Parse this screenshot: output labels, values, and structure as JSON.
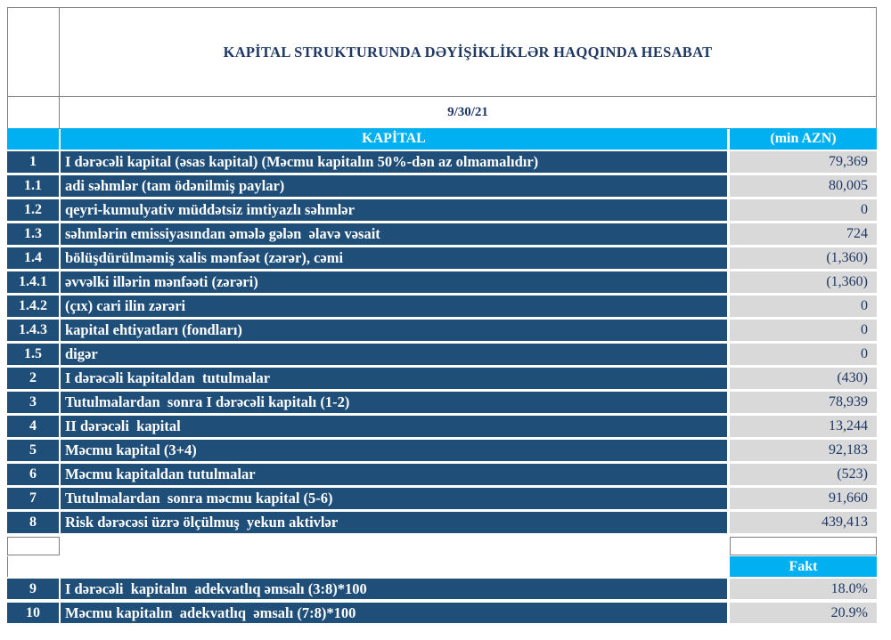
{
  "report": {
    "title": "KAPİTAL STRUKTURUNDA DƏYİŞİKLİKLƏR HAQQINDA HESABAT",
    "date": "9/30/21"
  },
  "column_header": {
    "kapital": "KAPİTAL",
    "unit": "(min AZN)"
  },
  "rows": [
    {
      "num": "1",
      "label": "I dərəcəli kapital (əsas kapital) (Məcmu kapitalın 50%-dən az olmamalıdır)",
      "value": "79,369"
    },
    {
      "num": "1.1",
      "label": "adi səhmlər (tam ödənilmiş paylar)",
      "value": "80,005"
    },
    {
      "num": "1.2",
      "label": "qeyri-kumulyativ müddətsiz imtiyazlı səhmlər",
      "value": "0"
    },
    {
      "num": "1.3",
      "label": "səhmlərin emissiyasından əmələ gələn  əlavə vəsait",
      "value": "724"
    },
    {
      "num": "1.4",
      "label": "bölüşdürülməmiş xalis mənfəət (zərər), cəmi",
      "value": "(1,360)"
    },
    {
      "num": "1.4.1",
      "label": "əvvəlki illərin mənfəəti (zərəri)",
      "value": "(1,360)"
    },
    {
      "num": "1.4.2",
      "label": "(çıx) cari ilin zərəri",
      "value": "0"
    },
    {
      "num": "1.4.3",
      "label": "kapital ehtiyatları (fondları)",
      "value": "0"
    },
    {
      "num": "1.5",
      "label": "digər",
      "value": "0"
    },
    {
      "num": "2",
      "label": "I dərəcəli kapitaldan  tutulmalar",
      "value": "(430)"
    },
    {
      "num": "3",
      "label": "Tutulmalardan  sonra I dərəcəli kapitalı (1-2)",
      "value": "78,939"
    },
    {
      "num": "4",
      "label": "II dərəcəli  kapital",
      "value": "13,244"
    },
    {
      "num": "5",
      "label": "Məcmu kapital (3+4)",
      "value": "92,183"
    },
    {
      "num": "6",
      "label": "Məcmu kapitaldan tutulmalar",
      "value": "(523)"
    },
    {
      "num": "7",
      "label": "Tutulmalardan  sonra məcmu kapital (5-6)",
      "value": "91,660"
    },
    {
      "num": "8",
      "label": "Risk dərəcəsi üzrə ölçülmuş  yekun aktivlər",
      "value": "439,413"
    }
  ],
  "fakt_section": {
    "fakt_label": "Fakt"
  },
  "ratio_rows": [
    {
      "num": "9",
      "label": "I dərəcəli  kapitalın  adekvatlıq əmsalı (3:8)*100",
      "value": "18.0%"
    },
    {
      "num": "10",
      "label": "Məcmu kapitalın  adekvatlıq  əmsalı (7:8)*100",
      "value": "20.9%"
    }
  ],
  "colors": {
    "row_background": "#1F4E79",
    "accent_cyan": "#00B0F0",
    "value_background": "#D9D9D9",
    "text_navy": "#1F3864",
    "border_gray": "#808080"
  }
}
